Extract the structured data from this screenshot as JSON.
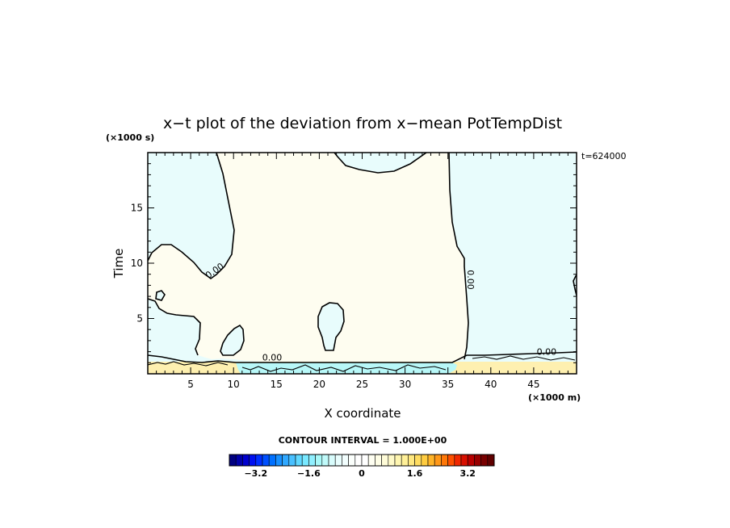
{
  "chart_data": {
    "type": "heatmap",
    "title": "x−t plot of the deviation from x−mean PotTempDist",
    "xlabel": "X coordinate",
    "ylabel": "Time",
    "x_unit": "(×1000 m)",
    "y_unit": "(×1000 s)",
    "corner_label": "t=624000",
    "xlim": [
      0,
      50
    ],
    "ylim": [
      0,
      20
    ],
    "x_ticks": [
      5,
      10,
      15,
      20,
      25,
      30,
      35,
      40,
      45
    ],
    "x_tick_labels": [
      "5",
      "10",
      "15",
      "20",
      "25",
      "30",
      "35",
      "40",
      "45"
    ],
    "y_ticks": [
      5,
      10,
      15
    ],
    "y_tick_labels": [
      "5",
      "10",
      "15"
    ],
    "contour_labels": [
      {
        "text": "0.00",
        "x": 8.0,
        "y": 9.1
      },
      {
        "text": "0.00",
        "x": 37.3,
        "y": 8.5
      },
      {
        "text": "0.00",
        "x": 14.5,
        "y": 1.2
      },
      {
        "text": "0.00",
        "x": 46.5,
        "y": 1.7
      }
    ],
    "regions": {
      "negative_small": {
        "range": [
          -0.2,
          0
        ],
        "color": "#e8fcfc"
      },
      "positive_small": {
        "range": [
          0,
          0.2
        ],
        "color": "#fefdf0"
      },
      "negative_band": {
        "range": [
          -0.4,
          -0.2
        ],
        "color": "#b8f8f8"
      },
      "positive_band": {
        "range": [
          0.2,
          0.6
        ],
        "color": "#fef0b0"
      }
    },
    "colorbar": {
      "title": "CONTOUR INTERVAL = 1.000E+00",
      "vmin": -4.0,
      "vmax": 4.0,
      "step": 0.2,
      "tick_values": [
        -3.2,
        -1.6,
        0,
        1.6,
        3.2
      ],
      "tick_labels": [
        "−3.2",
        "−1.6",
        "0",
        "1.6",
        "3.2"
      ],
      "colors": [
        "#000080",
        "#0000a8",
        "#0000cd",
        "#0010f0",
        "#0030ff",
        "#0050ff",
        "#0070ff",
        "#1890ff",
        "#30a8ff",
        "#48c0ff",
        "#60d8ff",
        "#78e8ff",
        "#90f0ff",
        "#a8f8f8",
        "#c0fafa",
        "#d8fcfc",
        "#e8fdfd",
        "#f2fefe",
        "#fbfffc",
        "#ffffff",
        "#ffffff",
        "#fffff2",
        "#fffee6",
        "#fffcd8",
        "#fffac8",
        "#fff6b0",
        "#fff098",
        "#ffe880",
        "#ffdc60",
        "#ffcc40",
        "#ffb428",
        "#ff9818",
        "#ff7808",
        "#ff5000",
        "#f02800",
        "#d81000",
        "#b80000",
        "#980000",
        "#780000",
        "#600000"
      ]
    }
  }
}
